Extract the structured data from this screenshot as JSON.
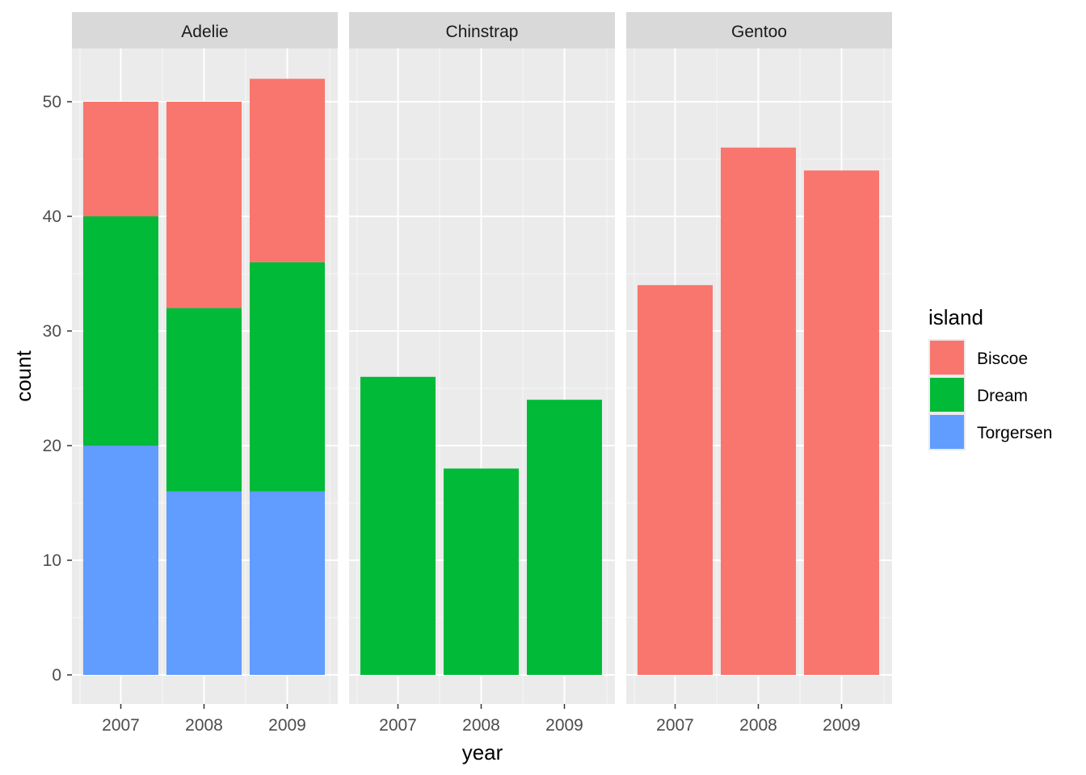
{
  "chart_data": {
    "type": "bar",
    "stacked": true,
    "facet_by": "species",
    "xlabel": "year",
    "ylabel": "count",
    "ylim": [
      0,
      55
    ],
    "y_ticks": [
      0,
      10,
      20,
      30,
      40,
      50
    ],
    "categories": [
      "2007",
      "2008",
      "2009"
    ],
    "grid": true,
    "legend": {
      "title": "island",
      "position": "right",
      "entries": [
        {
          "label": "Biscoe",
          "color": "#F8766D"
        },
        {
          "label": "Dream",
          "color": "#00BA38"
        },
        {
          "label": "Torgersen",
          "color": "#619CFF"
        }
      ]
    },
    "panels": [
      {
        "strip": "Adelie",
        "series": [
          {
            "name": "Torgersen",
            "values": [
              20,
              16,
              16
            ]
          },
          {
            "name": "Dream",
            "values": [
              20,
              16,
              20
            ]
          },
          {
            "name": "Biscoe",
            "values": [
              10,
              18,
              16
            ]
          }
        ]
      },
      {
        "strip": "Chinstrap",
        "series": [
          {
            "name": "Torgersen",
            "values": [
              0,
              0,
              0
            ]
          },
          {
            "name": "Dream",
            "values": [
              26,
              18,
              24
            ]
          },
          {
            "name": "Biscoe",
            "values": [
              0,
              0,
              0
            ]
          }
        ]
      },
      {
        "strip": "Gentoo",
        "series": [
          {
            "name": "Torgersen",
            "values": [
              0,
              0,
              0
            ]
          },
          {
            "name": "Dream",
            "values": [
              0,
              0,
              0
            ]
          },
          {
            "name": "Biscoe",
            "values": [
              34,
              46,
              44
            ]
          }
        ]
      }
    ]
  }
}
